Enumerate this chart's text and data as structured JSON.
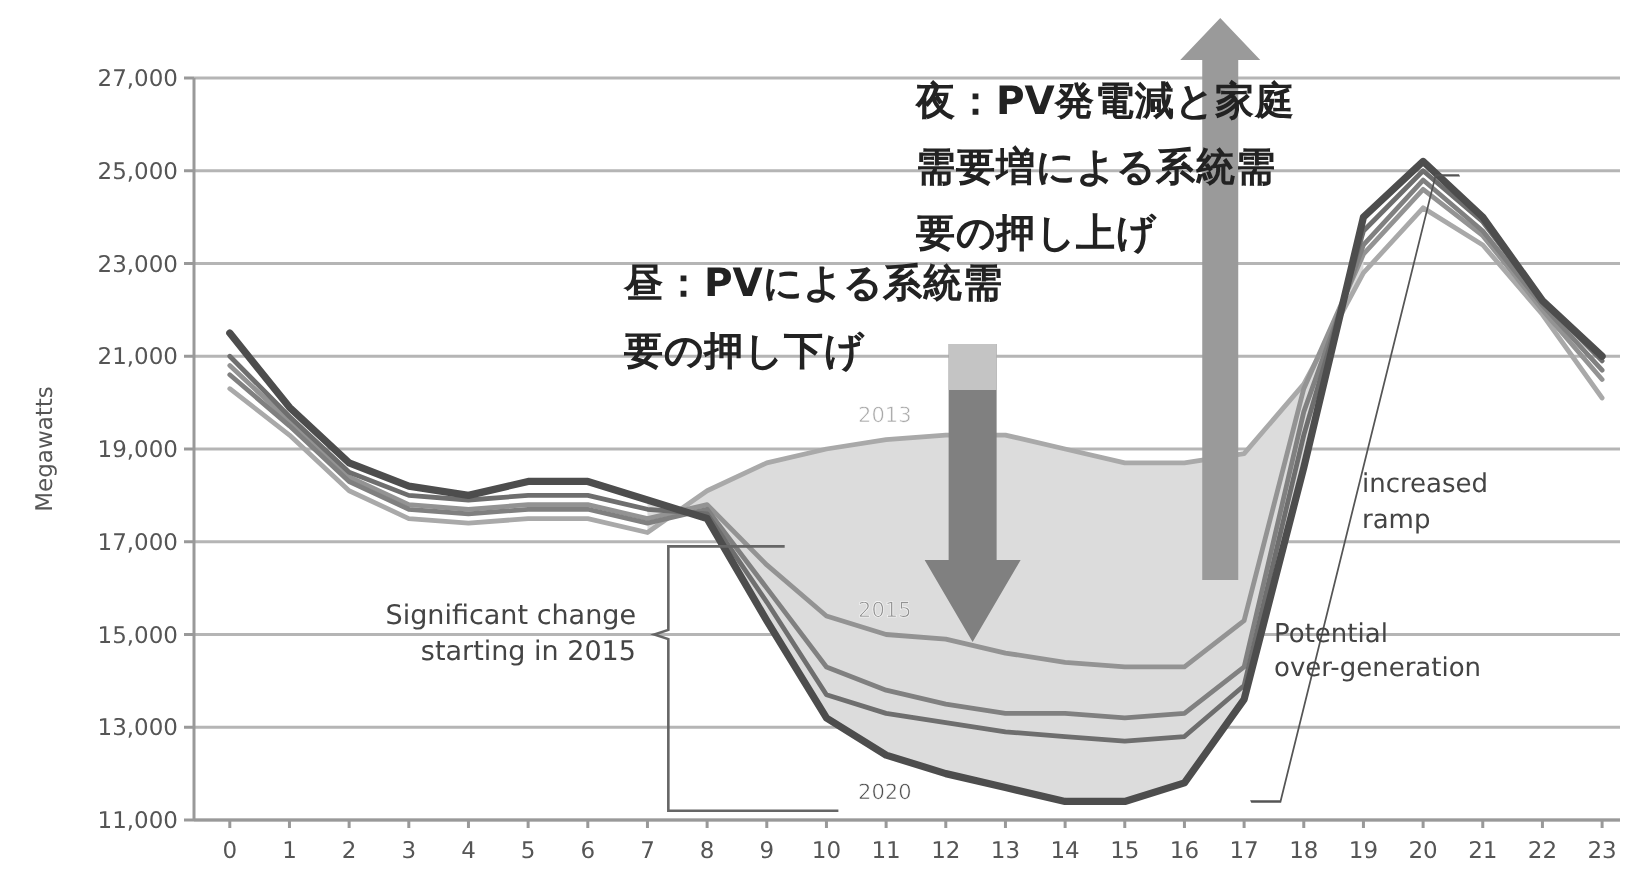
{
  "chart_data": {
    "type": "line",
    "ylabel": "Megawatts",
    "x": [
      0,
      1,
      2,
      3,
      4,
      5,
      6,
      7,
      8,
      9,
      10,
      11,
      12,
      13,
      14,
      15,
      16,
      17,
      18,
      19,
      20,
      21,
      22,
      23
    ],
    "xlim": [
      -0.6,
      23.3
    ],
    "ylim": [
      11000,
      27000
    ],
    "xticks": [
      0,
      1,
      2,
      3,
      4,
      5,
      6,
      7,
      8,
      9,
      10,
      11,
      12,
      13,
      14,
      15,
      16,
      17,
      18,
      19,
      20,
      21,
      22,
      23
    ],
    "yticks": [
      {
        "value": 11000,
        "label": "11,000"
      },
      {
        "value": 13000,
        "label": "13,000"
      },
      {
        "value": 15000,
        "label": "15,000"
      },
      {
        "value": 17000,
        "label": "17,000"
      },
      {
        "value": 19000,
        "label": "19,000"
      },
      {
        "value": 21000,
        "label": "21,000"
      },
      {
        "value": 23000,
        "label": "23,000"
      },
      {
        "value": 25000,
        "label": "25,000"
      },
      {
        "value": 27000,
        "label": "27,000"
      }
    ],
    "grid": "y",
    "legend": false,
    "marker": "none",
    "line_style": "solid",
    "series": [
      {
        "name": "2013",
        "color": "#a9a9a9",
        "values": [
          20300,
          19300,
          18100,
          17500,
          17400,
          17500,
          17500,
          17200,
          18100,
          18700,
          19000,
          19200,
          19300,
          19300,
          19000,
          18700,
          18700,
          18900,
          20400,
          22800,
          24200,
          23400,
          21900,
          20100
        ]
      },
      {
        "name": "2015",
        "color": "#939393",
        "values": [
          20800,
          19600,
          18400,
          17800,
          17700,
          17800,
          17800,
          17500,
          17800,
          16500,
          15400,
          15000,
          14900,
          14600,
          14400,
          14300,
          14300,
          15300,
          20300,
          23200,
          24600,
          23600,
          22000,
          20500
        ]
      },
      {
        "color": "#808080",
        "values": [
          20600,
          19500,
          18300,
          17700,
          17600,
          17700,
          17700,
          17400,
          17700,
          16000,
          14300,
          13800,
          13500,
          13300,
          13300,
          13200,
          13300,
          14300,
          19800,
          23400,
          24800,
          23700,
          22100,
          20700
        ]
      },
      {
        "color": "#6e6e6e",
        "values": [
          21000,
          19700,
          18500,
          18000,
          17900,
          18000,
          18000,
          17700,
          17600,
          15700,
          13700,
          13300,
          13100,
          12900,
          12800,
          12700,
          12800,
          13900,
          19300,
          23700,
          25000,
          23900,
          22200,
          20900
        ]
      },
      {
        "name": "2020",
        "color": "#4d4d4d",
        "values": [
          21500,
          19900,
          18700,
          18200,
          18000,
          18300,
          18300,
          17900,
          17500,
          15300,
          13200,
          12400,
          12000,
          11700,
          11400,
          11400,
          11800,
          13600,
          18600,
          24000,
          25200,
          24000,
          22200,
          21000
        ]
      }
    ],
    "annotations": [
      "昼：PVによる系統需要の押し下げ",
      "夜：PV発電減と家庭需要増による系統需要の押し上げ",
      "Significant change starting in 2015",
      "increased ramp",
      "Potential over-generation"
    ]
  }
}
